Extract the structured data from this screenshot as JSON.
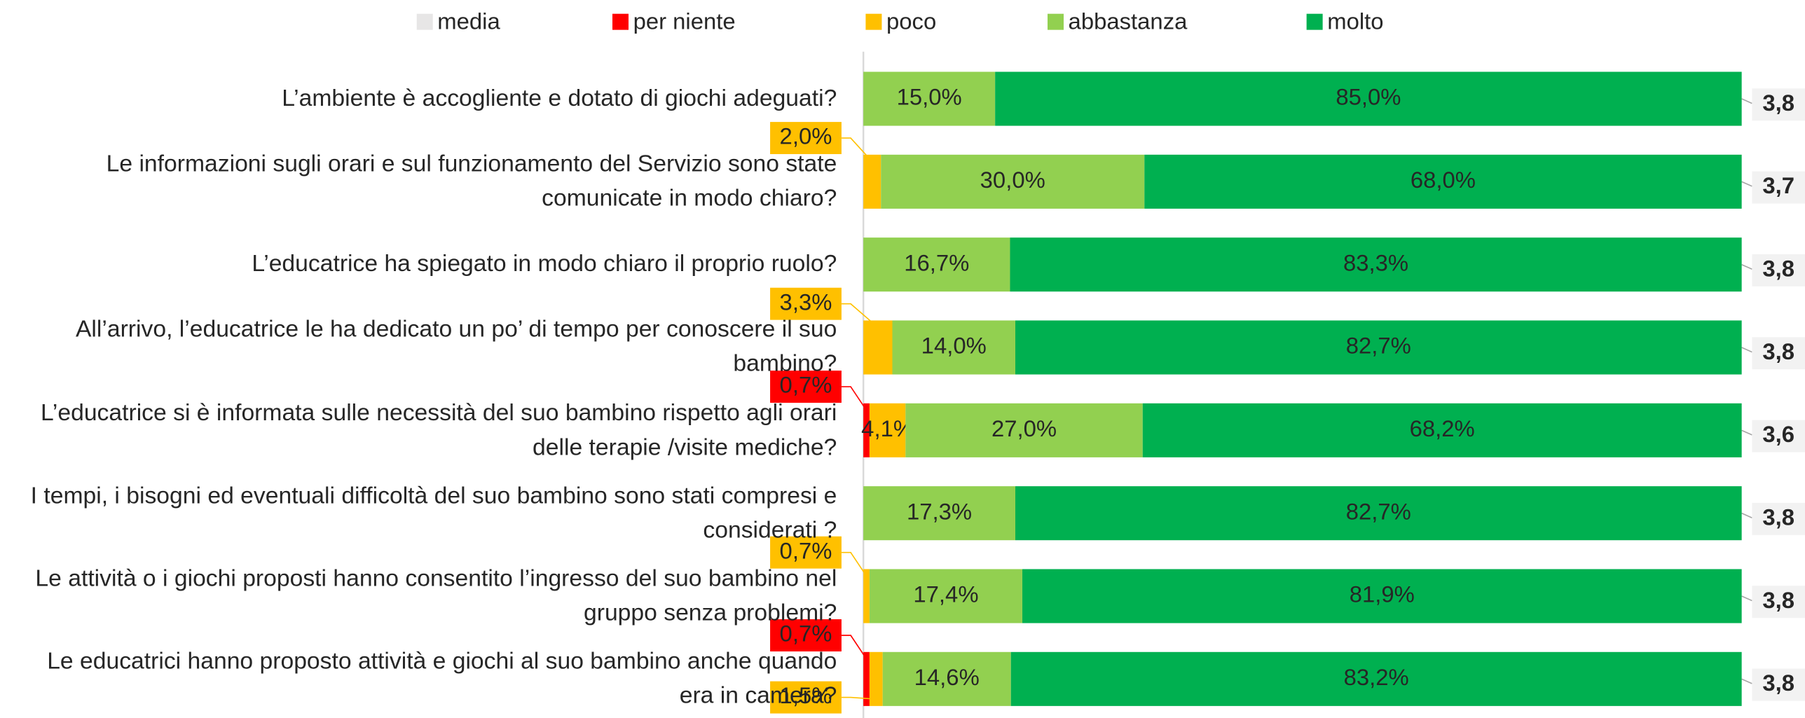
{
  "chart_data": {
    "type": "bar",
    "orientation": "horizontal",
    "stacked": true,
    "categories": [
      "L’ambiente è accogliente e dotato di giochi adeguati?",
      "Le informazioni sugli orari e sul funzionamento del Servizio sono state comunicate in modo chiaro?",
      "L’educatrice ha spiegato in modo chiaro il proprio ruolo?",
      "All’arrivo, l’educatrice le ha dedicato un po’ di tempo per conoscere il suo bambino?",
      "L’educatrice si è informata sulle necessità del suo bambino rispetto agli orari delle terapie /visite mediche?",
      "I tempi, i bisogni ed eventuali difficoltà del suo bambino sono stati compresi e considerati ?",
      "Le attività o i giochi proposti hanno consentito l’ingresso del suo bambino nel gruppo senza problemi?",
      "Le educatrici hanno proposto attività e giochi al suo bambino anche quando era in camera?"
    ],
    "series": [
      {
        "name": "media",
        "color": "#E7E6E6",
        "type": "label",
        "values": [
          3.8,
          3.7,
          3.8,
          3.8,
          3.6,
          3.8,
          3.8,
          3.8
        ],
        "value_labels": [
          "3,8",
          "3,7",
          "3,8",
          "3,8",
          "3,6",
          "3,8",
          "3,8",
          "3,8"
        ]
      },
      {
        "name": "per niente",
        "color": "#FF0000",
        "values": [
          null,
          null,
          null,
          null,
          0.7,
          null,
          null,
          0.7
        ],
        "value_labels": [
          null,
          null,
          null,
          null,
          "0,7%",
          null,
          null,
          "0,7%"
        ]
      },
      {
        "name": "poco",
        "color": "#FFC000",
        "values": [
          null,
          2.0,
          null,
          3.3,
          4.1,
          null,
          0.7,
          1.5
        ],
        "value_labels": [
          null,
          "2,0%",
          null,
          "3,3%",
          "4,1%",
          null,
          "0,7%",
          "1,5%"
        ]
      },
      {
        "name": "abbastanza",
        "color": "#92D050",
        "values": [
          15.0,
          30.0,
          16.7,
          14.0,
          27.0,
          17.3,
          17.4,
          14.6
        ],
        "value_labels": [
          "15,0%",
          "30,0%",
          "16,7%",
          "14,0%",
          "27,0%",
          "17,3%",
          "17,4%",
          "14,6%"
        ]
      },
      {
        "name": "molto",
        "color": "#00B050",
        "values": [
          85.0,
          68.0,
          83.3,
          82.7,
          68.2,
          82.7,
          81.9,
          83.2
        ],
        "value_labels": [
          "85,0%",
          "68,0%",
          "83,3%",
          "82,7%",
          "68,2%",
          "82,7%",
          "81,9%",
          "83,2%"
        ]
      }
    ],
    "xlim": [
      0,
      100
    ],
    "legend": "top"
  }
}
